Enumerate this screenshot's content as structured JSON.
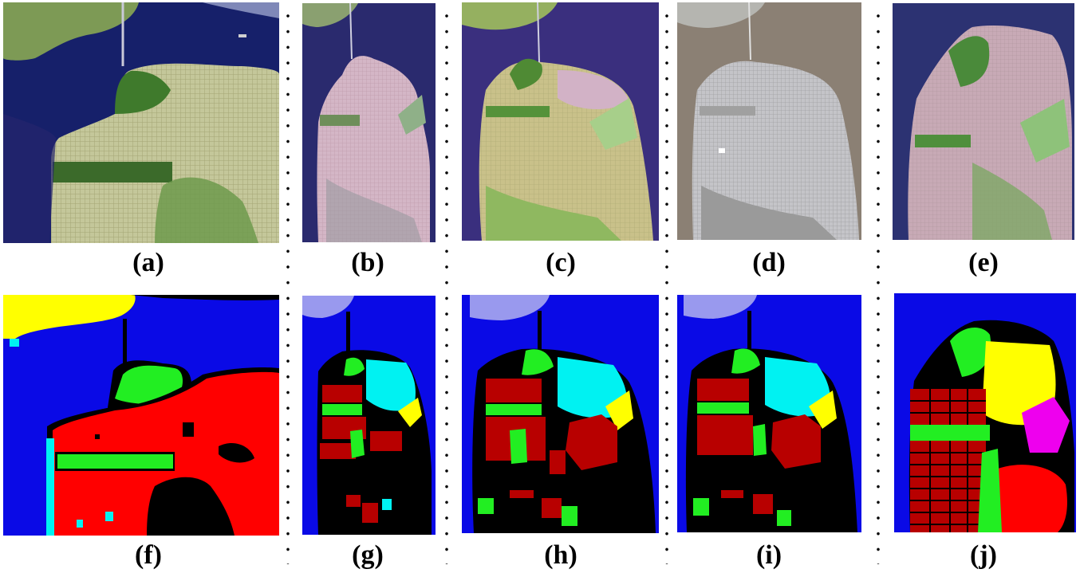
{
  "figure": {
    "captions": {
      "a": "(a)",
      "b": "(b)",
      "c": "(c)",
      "d": "(d)",
      "e": "(e)",
      "f": "(f)",
      "g": "(g)",
      "h": "(h)",
      "i": "(i)",
      "j": "(j)"
    },
    "colors": {
      "water": "#0a0ae6",
      "urban_high": "#b80000",
      "urban_red": "#ff0000",
      "vegetation": "#22ee22",
      "low_density": "#00f2f2",
      "developed": "#ffff00",
      "other": "#ee00ee",
      "mountain": "#9999ee",
      "unlabeled": "#000000"
    }
  }
}
